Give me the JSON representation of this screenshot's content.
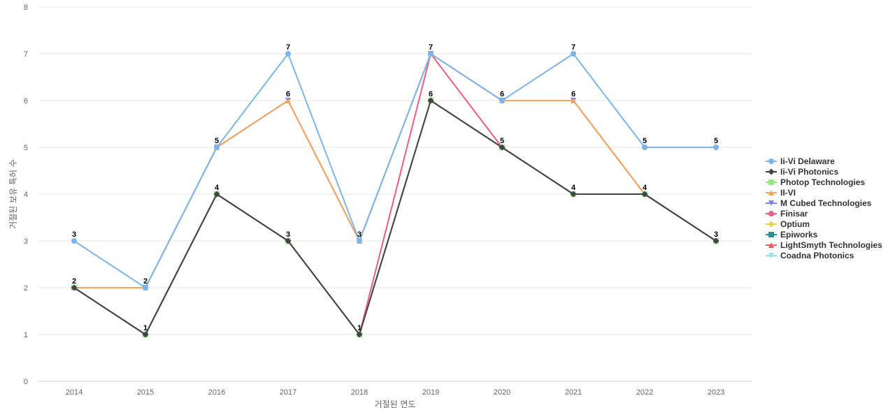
{
  "chart_data": {
    "type": "line",
    "title": "",
    "xlabel": "거절된 연도",
    "ylabel": "거절된 보유 특허 수",
    "categories": [
      "2014",
      "2015",
      "2016",
      "2017",
      "2018",
      "2019",
      "2020",
      "2021",
      "2022",
      "2023"
    ],
    "ylim": [
      0,
      8
    ],
    "yticks": [
      0,
      1,
      2,
      3,
      4,
      5,
      6,
      7,
      8
    ],
    "grid": true,
    "legend_position": "right",
    "series": [
      {
        "name": "Ii-Vi Delaware",
        "color": "#7cb5ec",
        "marker": "circle",
        "values": [
          3,
          2,
          5,
          7,
          3,
          7,
          6,
          7,
          5,
          5
        ]
      },
      {
        "name": "Ii-Vi Photonics",
        "color": "#434348",
        "marker": "diamond",
        "values": [
          2,
          1,
          4,
          3,
          1,
          6,
          5,
          4,
          4,
          3
        ]
      },
      {
        "name": "Photop Technologies",
        "color": "#90ed7d",
        "marker": "square",
        "values": [
          2,
          1,
          4,
          3,
          1,
          6,
          5,
          4,
          4,
          3
        ]
      },
      {
        "name": "II-VI",
        "color": "#f7a35c",
        "marker": "triangle",
        "values": [
          2,
          2,
          5,
          6,
          3,
          7,
          6,
          6,
          4,
          3
        ]
      },
      {
        "name": "M Cubed Technologies",
        "color": "#8085e9",
        "marker": "triangle-down",
        "values": [
          2,
          2,
          5,
          6,
          3,
          7,
          6,
          6,
          4,
          3
        ]
      },
      {
        "name": "Finisar",
        "color": "#f15c80",
        "marker": "circle",
        "values": [
          2,
          1,
          4,
          3,
          1,
          7,
          5,
          4,
          4,
          3
        ]
      },
      {
        "name": "Optium",
        "color": "#e4d354",
        "marker": "diamond",
        "values": [
          2,
          1,
          4,
          3,
          1,
          6,
          5,
          4,
          4,
          3
        ]
      },
      {
        "name": "Epiworks",
        "color": "#2b908f",
        "marker": "square",
        "values": [
          2,
          1,
          4,
          3,
          1,
          6,
          5,
          4,
          4,
          3
        ]
      },
      {
        "name": "LightSmyth Technologies",
        "color": "#f45b5b",
        "marker": "triangle",
        "values": [
          2,
          1,
          4,
          3,
          1,
          6,
          5,
          4,
          4,
          3
        ]
      },
      {
        "name": "Coadna Photonics",
        "color": "#91e8e1",
        "marker": "triangle-down",
        "values": [
          2,
          1,
          4,
          3,
          1,
          6,
          5,
          4,
          4,
          3
        ]
      }
    ],
    "data_labels": [
      {
        "category": "2014",
        "y": 3,
        "text": "3"
      },
      {
        "category": "2014",
        "y": 2,
        "text": "2"
      },
      {
        "category": "2015",
        "y": 2,
        "text": "2"
      },
      {
        "category": "2015",
        "y": 1,
        "text": "1"
      },
      {
        "category": "2016",
        "y": 5,
        "text": "5"
      },
      {
        "category": "2016",
        "y": 4,
        "text": "4"
      },
      {
        "category": "2017",
        "y": 7,
        "text": "7"
      },
      {
        "category": "2017",
        "y": 6,
        "text": "6"
      },
      {
        "category": "2017",
        "y": 3,
        "text": "3"
      },
      {
        "category": "2018",
        "y": 3,
        "text": "3"
      },
      {
        "category": "2018",
        "y": 1,
        "text": "1"
      },
      {
        "category": "2019",
        "y": 7,
        "text": "7"
      },
      {
        "category": "2019",
        "y": 6,
        "text": "6"
      },
      {
        "category": "2020",
        "y": 6,
        "text": "6"
      },
      {
        "category": "2020",
        "y": 5,
        "text": "5"
      },
      {
        "category": "2021",
        "y": 7,
        "text": "7"
      },
      {
        "category": "2021",
        "y": 6,
        "text": "6"
      },
      {
        "category": "2021",
        "y": 4,
        "text": "4"
      },
      {
        "category": "2022",
        "y": 5,
        "text": "5"
      },
      {
        "category": "2022",
        "y": 4,
        "text": "4"
      },
      {
        "category": "2023",
        "y": 5,
        "text": "5"
      },
      {
        "category": "2023",
        "y": 3,
        "text": "3"
      }
    ]
  }
}
